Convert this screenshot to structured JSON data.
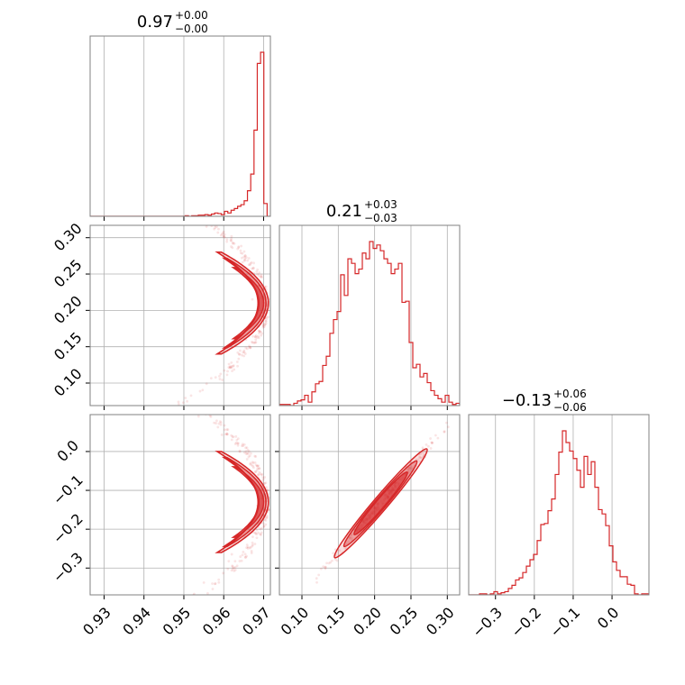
{
  "colors": {
    "accent": "#d62728",
    "grid": "#b0b0b0",
    "frame": "#808080"
  },
  "chart_data": {
    "type": "corner",
    "grid": true,
    "parameters": [
      {
        "title": {
          "value": "0.97",
          "plus": "+0.00",
          "minus": "−0.00"
        },
        "range": [
          0.9265,
          0.9717
        ],
        "ticks": [
          0.93,
          0.94,
          0.95,
          0.96,
          0.97
        ],
        "tick_labels": [
          "0.93",
          "0.94",
          "0.95",
          "0.96",
          "0.97"
        ]
      },
      {
        "title": {
          "value": "0.21",
          "plus": "+0.03",
          "minus": "−0.03"
        },
        "range": [
          0.069,
          0.317
        ],
        "ticks": [
          0.1,
          0.15,
          0.2,
          0.25,
          0.3
        ],
        "tick_labels": [
          "0.10",
          "0.15",
          "0.20",
          "0.25",
          "0.30"
        ]
      },
      {
        "title": {
          "value": "−0.13",
          "plus": "+0.06",
          "minus": "−0.06"
        },
        "range": [
          -0.369,
          0.095
        ],
        "ticks": [
          -0.3,
          -0.2,
          -0.1,
          0.0
        ],
        "tick_labels": [
          "−0.3",
          "−0.2",
          "−0.1",
          "0.0"
        ]
      }
    ],
    "marginals": [
      {
        "param": 0,
        "bin_edges": [
          0.9265,
          0.9717
        ],
        "counts": [
          0,
          0,
          0,
          0,
          0,
          0,
          0,
          0,
          0,
          0,
          0,
          0,
          0,
          0,
          0,
          0,
          0,
          0,
          0,
          0,
          0,
          0,
          0,
          0,
          0,
          0,
          0,
          0,
          0,
          1,
          0,
          1,
          1,
          2,
          2,
          3,
          2,
          4,
          6,
          5,
          3,
          9,
          6,
          11,
          14,
          18,
          21,
          28,
          46,
          76,
          155,
          275,
          295,
          23,
          0
        ]
      },
      {
        "param": 1,
        "bin_edges": [
          0.069,
          0.317
        ],
        "counts": [
          1,
          1,
          1,
          0,
          2,
          4,
          5,
          9,
          3,
          12,
          19,
          21,
          35,
          43,
          63,
          75,
          82,
          114,
          96,
          128,
          124,
          115,
          119,
          133,
          128,
          143,
          137,
          140,
          135,
          128,
          124,
          115,
          119,
          124,
          90,
          91,
          55,
          33,
          36,
          25,
          28,
          20,
          13,
          9,
          6,
          3,
          9,
          3,
          1,
          2
        ]
      },
      {
        "param": 2,
        "bin_edges": [
          -0.369,
          0.095
        ],
        "counts": [
          0,
          0,
          0,
          1,
          1,
          0,
          1,
          3,
          1,
          2,
          3,
          6,
          9,
          14,
          16,
          21,
          27,
          33,
          38,
          51,
          66,
          67,
          79,
          90,
          113,
          134,
          154,
          143,
          135,
          128,
          117,
          101,
          130,
          113,
          125,
          101,
          80,
          76,
          65,
          46,
          31,
          23,
          17,
          17,
          10,
          9,
          1,
          0,
          1,
          1
        ]
      }
    ],
    "joint": [
      {
        "x_param": 0,
        "y_param": 1,
        "relation": "crescent bending toward x = 0.97, centered near y = 0.21"
      },
      {
        "x_param": 0,
        "y_param": 2,
        "relation": "crescent bending toward x = 0.97, centered near y = −0.13"
      },
      {
        "x_param": 1,
        "y_param": 2,
        "relation": "tight positive linear correlation"
      }
    ]
  }
}
